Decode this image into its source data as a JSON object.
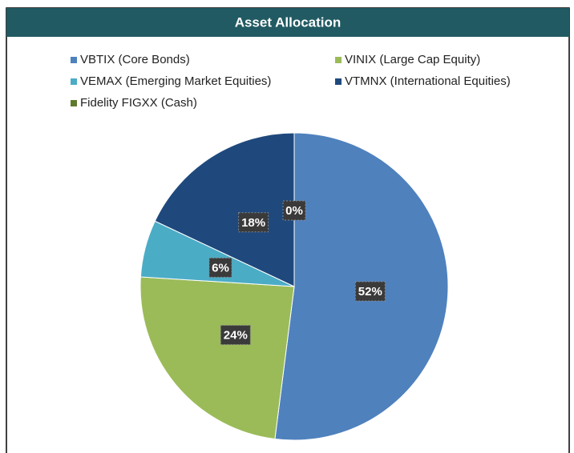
{
  "chart_data": {
    "type": "pie",
    "title": "Asset Allocation",
    "categories": [
      "VBTIX (Core Bonds)",
      "VINIX (Large Cap Equity)",
      "VEMAX (Emerging Market Equities)",
      "VTMNX (International Equities)",
      "Fidelity FIGXX (Cash)"
    ],
    "values": [
      52,
      24,
      6,
      18,
      0
    ],
    "value_labels": [
      "52%",
      "24%",
      "6%",
      "18%",
      "0%"
    ],
    "colors": [
      "#4f81bd",
      "#9bbb59",
      "#4bacc6",
      "#1f497d",
      "#5f7a2e"
    ]
  }
}
